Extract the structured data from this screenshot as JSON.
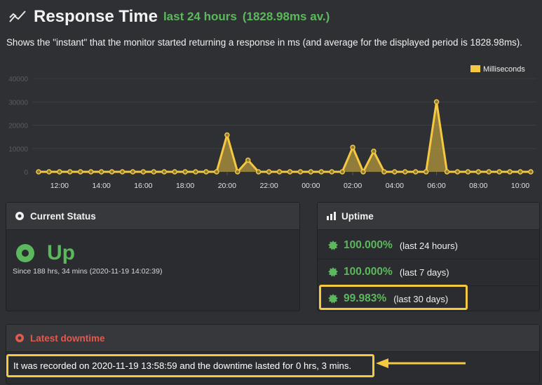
{
  "header": {
    "title": "Response Time",
    "period": "last 24 hours",
    "average": "(1828.98ms av.)",
    "description": "Shows the \"instant\" that the monitor started returning a response in ms (and average for the displayed period is 1828.98ms)."
  },
  "chart_data": {
    "type": "area",
    "legend": [
      "Milliseconds"
    ],
    "legend_position": "top-right",
    "color": "#f5c842",
    "grid": true,
    "ylim": [
      0,
      40000
    ],
    "yticks": [
      "0",
      "10000",
      "20000",
      "30000",
      "40000"
    ],
    "x_tick_labels": [
      "12:00",
      "14:00",
      "16:00",
      "18:00",
      "20:00",
      "22:00",
      "00:00",
      "02:00",
      "04:00",
      "06:00",
      "08:00",
      "10:00"
    ],
    "series": [
      {
        "name": "Milliseconds",
        "x": [
          "11:00",
          "11:30",
          "12:00",
          "12:30",
          "13:00",
          "13:30",
          "14:00",
          "14:30",
          "15:00",
          "15:30",
          "16:00",
          "16:30",
          "17:00",
          "17:30",
          "18:00",
          "18:30",
          "19:00",
          "19:30",
          "20:00",
          "20:30",
          "21:00",
          "21:30",
          "22:00",
          "22:30",
          "23:00",
          "23:30",
          "00:00",
          "00:30",
          "01:00",
          "01:30",
          "02:00",
          "02:30",
          "03:00",
          "03:30",
          "04:00",
          "04:30",
          "05:00",
          "05:30",
          "06:00",
          "06:30",
          "07:00",
          "07:30",
          "08:00",
          "08:30",
          "09:00",
          "09:30",
          "10:00",
          "10:30"
        ],
        "values": [
          0,
          0,
          0,
          0,
          0,
          0,
          0,
          0,
          0,
          0,
          0,
          0,
          0,
          0,
          0,
          0,
          0,
          0,
          15800,
          0,
          5000,
          0,
          0,
          0,
          0,
          0,
          0,
          0,
          0,
          0,
          10500,
          0,
          8800,
          0,
          0,
          0,
          0,
          0,
          30000,
          0,
          0,
          0,
          0,
          0,
          0,
          0,
          0,
          0
        ]
      }
    ]
  },
  "current_status": {
    "heading": "Current Status",
    "status": "Up",
    "since": "Since 188 hrs, 34 mins (2020-11-19 14:02:39)"
  },
  "uptime": {
    "heading": "Uptime",
    "rows": [
      {
        "pct": "100.000%",
        "label": "(last 24 hours)"
      },
      {
        "pct": "100.000%",
        "label": "(last 7 days)"
      },
      {
        "pct": "99.983%",
        "label": "(last 30 days)"
      }
    ]
  },
  "downtime": {
    "heading": "Latest downtime",
    "text": "It was recorded on 2020-11-19 13:58:59 and the downtime lasted for 0 hrs, 3 mins."
  },
  "colors": {
    "accent_green": "#5cb85c",
    "highlight_yellow": "#f5c842",
    "downtime_red": "#e05a4f",
    "background": "#2e3033"
  }
}
